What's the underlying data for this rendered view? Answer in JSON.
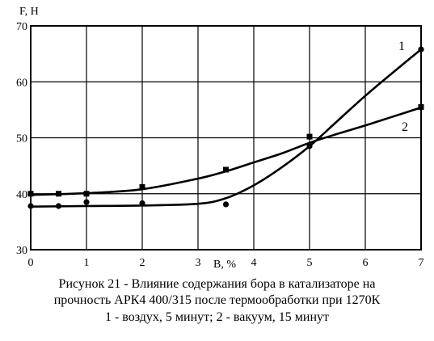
{
  "chart_data": {
    "type": "scatter",
    "title": "",
    "xlabel": "B, %",
    "ylabel": "F, H",
    "xlim": [
      0,
      7
    ],
    "ylim": [
      30,
      70
    ],
    "x_ticks": [
      0,
      1,
      2,
      3,
      4,
      5,
      6,
      7
    ],
    "y_ticks": [
      30,
      40,
      50,
      60,
      70
    ],
    "grid": true,
    "series": [
      {
        "name": "1",
        "marker": "circle",
        "color": "#000000",
        "points": [
          [
            0,
            37.8
          ],
          [
            0.5,
            37.8
          ],
          [
            1,
            38.5
          ],
          [
            2,
            38.3
          ],
          [
            3.5,
            38.1
          ],
          [
            5,
            48.5
          ],
          [
            7,
            65.8
          ]
        ],
        "curve": [
          [
            0,
            37.7
          ],
          [
            1,
            37.8
          ],
          [
            2,
            37.9
          ],
          [
            3,
            38.2
          ],
          [
            3.5,
            39.2
          ],
          [
            4,
            41.5
          ],
          [
            4.5,
            44.7
          ],
          [
            5,
            48.5
          ],
          [
            5.5,
            53
          ],
          [
            6,
            57.5
          ],
          [
            6.5,
            61.7
          ],
          [
            7,
            65.8
          ]
        ]
      },
      {
        "name": "2",
        "marker": "square",
        "color": "#000000",
        "points": [
          [
            0,
            40
          ],
          [
            0.5,
            40
          ],
          [
            1,
            40
          ],
          [
            2,
            41.2
          ],
          [
            3.5,
            44.3
          ],
          [
            5,
            50.2
          ],
          [
            7,
            55.5
          ]
        ],
        "curve": [
          [
            0,
            39.8
          ],
          [
            1,
            40.1
          ],
          [
            2,
            40.8
          ],
          [
            3,
            42.7
          ],
          [
            3.5,
            44
          ],
          [
            4,
            45.6
          ],
          [
            4.5,
            47.2
          ],
          [
            5,
            49.1
          ],
          [
            5.5,
            50.7
          ],
          [
            6,
            52.2
          ],
          [
            6.5,
            53.8
          ],
          [
            7,
            55.4
          ]
        ]
      }
    ]
  },
  "caption": {
    "line1": "Рисунок 21 -  Влияние содержания бора в катализаторе на",
    "line2": "прочность АРК4 400/315 после термообработки при 1270К",
    "line3": "1 - воздух, 5 минут; 2 - вакуум, 15 минут"
  }
}
